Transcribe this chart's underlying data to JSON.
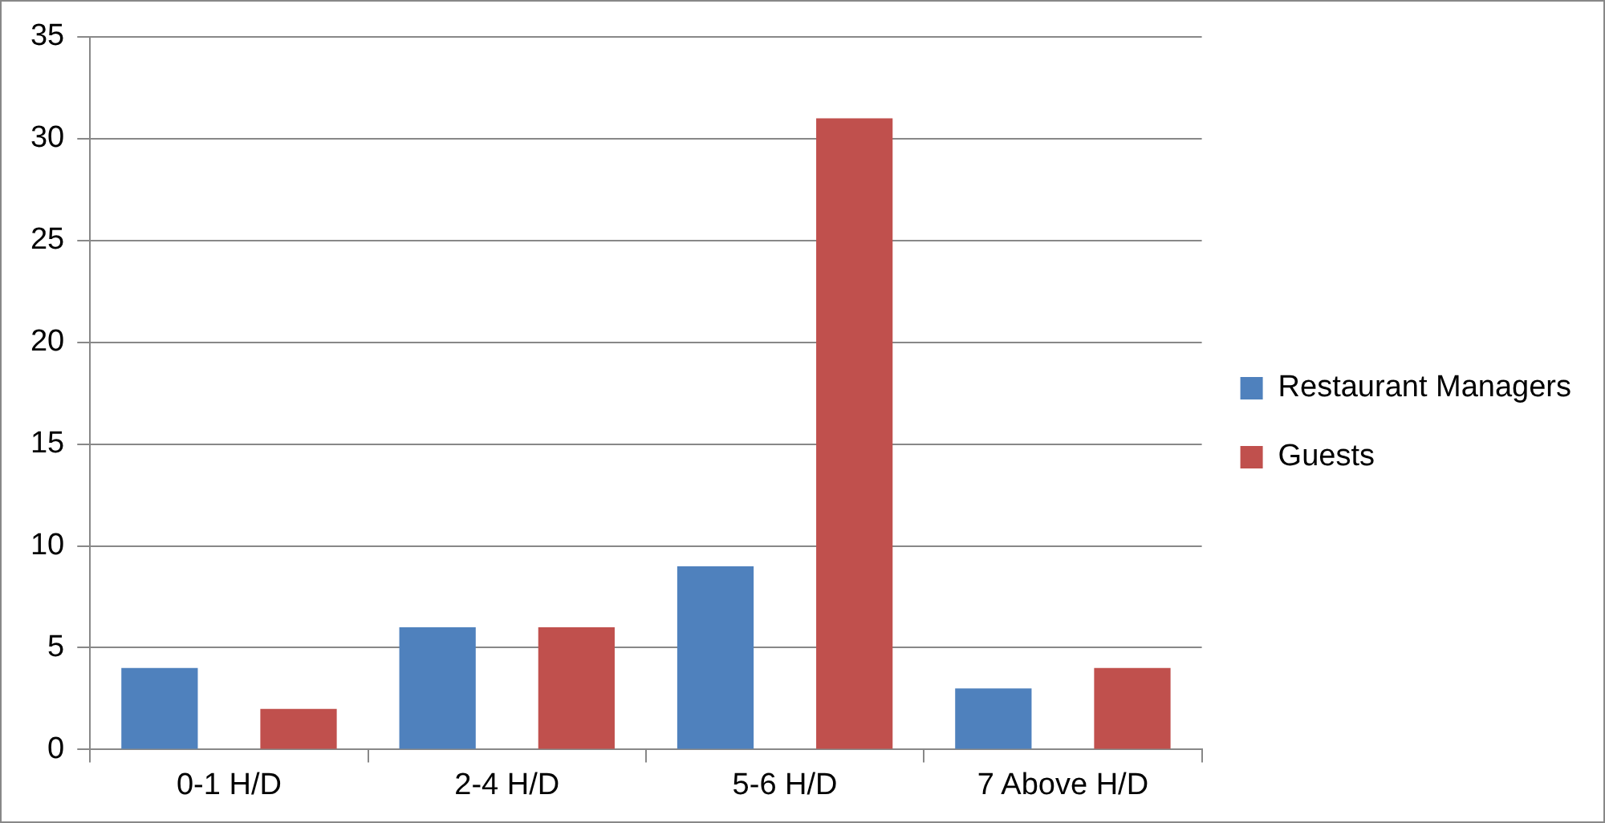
{
  "chart_data": {
    "type": "bar",
    "categories": [
      "0-1 H/D",
      "2-4 H/D",
      "5-6 H/D",
      "7 Above H/D"
    ],
    "series": [
      {
        "name": "Restaurant Managers",
        "color": "#4f81bd",
        "values": [
          4,
          6,
          9,
          3
        ]
      },
      {
        "name": "Guests",
        "color": "#c0504d",
        "values": [
          2,
          6,
          31,
          4
        ]
      }
    ],
    "ylim": [
      0,
      35
    ],
    "yticks": [
      0,
      5,
      10,
      15,
      20,
      25,
      30,
      35
    ],
    "grid": "y",
    "legend": "right"
  }
}
